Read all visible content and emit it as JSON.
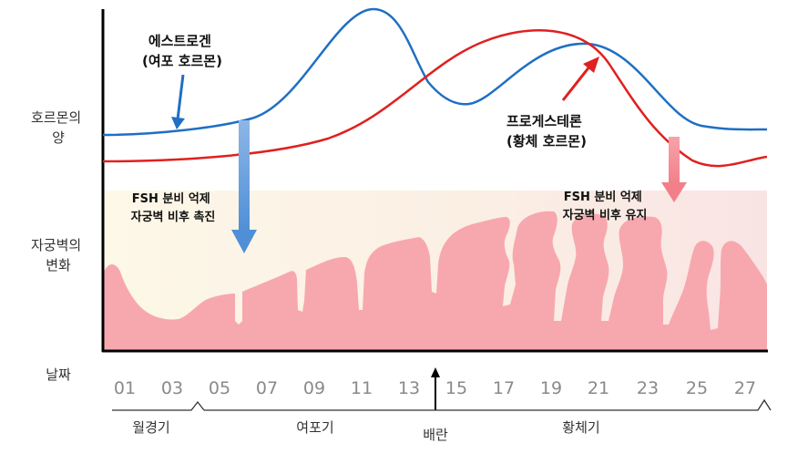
{
  "labels": {
    "hormone_amount": [
      "호르몬의",
      "양"
    ],
    "uterine_change": [
      "자궁벽의",
      "변화"
    ],
    "days_label": "날짜"
  },
  "annotations": {
    "estrogen": [
      "에스트로겐",
      "(여포 호르몬)"
    ],
    "progesterone": [
      "프로게스테론",
      "(황체 호르몬)"
    ],
    "fsh_left": [
      "FSH 분비 억제",
      "자궁벽 비후 촉진"
    ],
    "fsh_right": [
      "FSH 분비 억제",
      "자궁벽 비후 유지"
    ]
  },
  "days": [
    "01",
    "03",
    "05",
    "07",
    "09",
    "11",
    "13",
    "15",
    "17",
    "19",
    "21",
    "23",
    "25",
    "27"
  ],
  "phases": {
    "menstrual": "월경기",
    "follicular": "여포기",
    "ovulation": "배란",
    "luteal": "황체기"
  },
  "colors": {
    "estrogen": "#1f6fc4",
    "progesterone": "#e02020",
    "uterine_wall": "#f7a8ae",
    "uterine_bg": "#fdf6e6",
    "blue_arrow": "#6fa3de",
    "pink_arrow": "#f58a94"
  }
}
